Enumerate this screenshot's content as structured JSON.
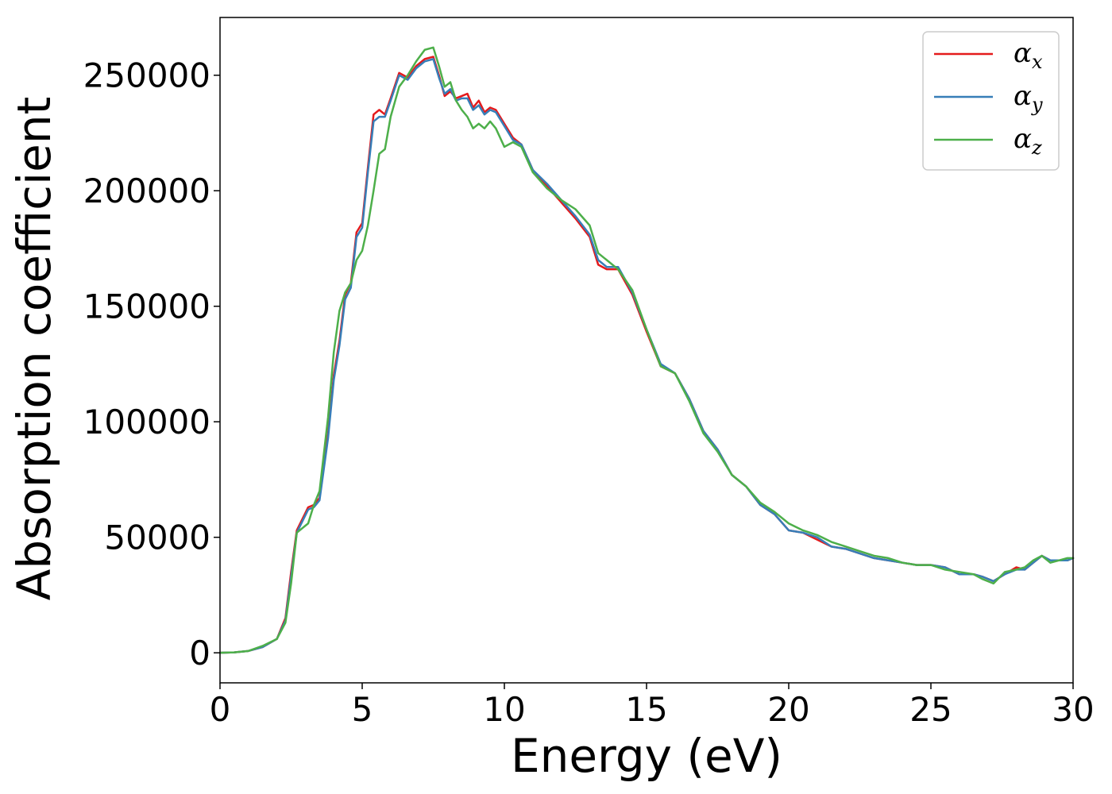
{
  "chart_data": {
    "type": "line",
    "xlabel": "Energy (eV)",
    "ylabel": "Absorption coefficient",
    "xlim": [
      0,
      30
    ],
    "ylim": [
      -13000,
      275000
    ],
    "xticks": [
      0,
      5,
      10,
      15,
      20,
      25,
      30
    ],
    "xtick_labels": [
      "0",
      "5",
      "10",
      "15",
      "20",
      "25",
      "30"
    ],
    "yticks": [
      0,
      50000,
      100000,
      150000,
      200000,
      250000
    ],
    "ytick_labels": [
      "0",
      "50000",
      "100000",
      "150000",
      "200000",
      "250000"
    ],
    "grid": false,
    "legend_position": "top-right",
    "series": [
      {
        "name": "α",
        "subscript": "x",
        "color": "#e41a1c",
        "x": [
          0,
          0.5,
          1.0,
          1.5,
          2.0,
          2.3,
          2.5,
          2.7,
          2.9,
          3.1,
          3.3,
          3.5,
          3.8,
          4.0,
          4.2,
          4.4,
          4.6,
          4.8,
          5.0,
          5.2,
          5.4,
          5.6,
          5.8,
          6.0,
          6.3,
          6.6,
          6.9,
          7.2,
          7.5,
          7.7,
          7.9,
          8.1,
          8.3,
          8.5,
          8.7,
          8.9,
          9.1,
          9.3,
          9.5,
          9.7,
          10.0,
          10.3,
          10.6,
          11.0,
          11.5,
          12.0,
          12.5,
          13.0,
          13.3,
          13.6,
          14.0,
          14.5,
          15.0,
          15.5,
          16.0,
          16.5,
          17.0,
          17.5,
          18.0,
          18.5,
          19.0,
          19.5,
          20.0,
          20.5,
          21.0,
          21.5,
          22.0,
          22.5,
          23.0,
          23.5,
          24.0,
          24.5,
          25.0,
          25.5,
          26.0,
          26.5,
          26.8,
          27.2,
          27.6,
          28.0,
          28.3,
          28.6,
          28.9,
          29.2,
          29.5,
          29.8,
          30.0
        ],
        "y": [
          0,
          200,
          800,
          2500,
          6000,
          15000,
          35000,
          53000,
          58000,
          63000,
          64000,
          67000,
          95000,
          120000,
          135000,
          155000,
          160000,
          182000,
          186000,
          210000,
          233000,
          235000,
          233000,
          240000,
          251000,
          249000,
          254000,
          257000,
          258000,
          250000,
          241000,
          243000,
          240000,
          241000,
          242000,
          236000,
          239000,
          234000,
          236000,
          235000,
          229000,
          223000,
          220000,
          209000,
          202000,
          195000,
          188000,
          180000,
          168000,
          166000,
          166000,
          155000,
          139000,
          124000,
          121000,
          110000,
          96000,
          88000,
          77000,
          72000,
          64000,
          60000,
          53000,
          52000,
          49000,
          46000,
          45000,
          43000,
          41000,
          40000,
          39000,
          38000,
          38000,
          37000,
          34000,
          34000,
          33000,
          31000,
          34000,
          37000,
          36000,
          39000,
          42000,
          40000,
          40000,
          40000,
          41000
        ]
      },
      {
        "name": "α",
        "subscript": "y",
        "color": "#377eb8",
        "x": [
          0,
          0.5,
          1.0,
          1.5,
          2.0,
          2.3,
          2.5,
          2.7,
          2.9,
          3.1,
          3.3,
          3.5,
          3.8,
          4.0,
          4.2,
          4.4,
          4.6,
          4.8,
          5.0,
          5.2,
          5.4,
          5.6,
          5.8,
          6.0,
          6.3,
          6.6,
          6.9,
          7.2,
          7.5,
          7.7,
          7.9,
          8.1,
          8.3,
          8.5,
          8.7,
          8.9,
          9.1,
          9.3,
          9.5,
          9.7,
          10.0,
          10.3,
          10.6,
          11.0,
          11.5,
          12.0,
          12.5,
          13.0,
          13.3,
          13.6,
          14.0,
          14.5,
          15.0,
          15.5,
          16.0,
          16.5,
          17.0,
          17.5,
          18.0,
          18.5,
          19.0,
          19.5,
          20.0,
          20.5,
          21.0,
          21.5,
          22.0,
          22.5,
          23.0,
          23.5,
          24.0,
          24.5,
          25.0,
          25.5,
          26.0,
          26.5,
          26.8,
          27.2,
          27.6,
          28.0,
          28.3,
          28.6,
          28.9,
          29.2,
          29.5,
          29.8,
          30.0
        ],
        "y": [
          0,
          200,
          800,
          2500,
          6000,
          14000,
          33000,
          52000,
          57000,
          62000,
          63000,
          66000,
          93000,
          118000,
          133000,
          153000,
          158000,
          180000,
          184000,
          208000,
          230000,
          232000,
          232000,
          239000,
          250000,
          248000,
          253000,
          256000,
          257000,
          249000,
          242000,
          244000,
          239000,
          240000,
          240000,
          235000,
          237000,
          233000,
          235000,
          234000,
          228000,
          222000,
          220000,
          209000,
          203000,
          196000,
          189000,
          181000,
          170000,
          167000,
          167000,
          156000,
          140000,
          125000,
          121000,
          110000,
          96000,
          88000,
          77000,
          72000,
          64000,
          60000,
          53000,
          52000,
          50000,
          46000,
          45000,
          43000,
          41000,
          40000,
          39000,
          38000,
          38000,
          37000,
          34000,
          34000,
          33000,
          31000,
          34000,
          36000,
          36000,
          39000,
          42000,
          40000,
          40000,
          40000,
          41000
        ]
      },
      {
        "name": "α",
        "subscript": "z",
        "color": "#4daf4a",
        "x": [
          0,
          0.5,
          1.0,
          1.5,
          2.0,
          2.3,
          2.5,
          2.7,
          2.9,
          3.1,
          3.3,
          3.5,
          3.8,
          4.0,
          4.2,
          4.4,
          4.6,
          4.8,
          5.0,
          5.2,
          5.4,
          5.6,
          5.8,
          6.0,
          6.3,
          6.6,
          6.9,
          7.2,
          7.5,
          7.7,
          7.9,
          8.1,
          8.3,
          8.5,
          8.7,
          8.9,
          9.1,
          9.3,
          9.5,
          9.7,
          10.0,
          10.3,
          10.6,
          11.0,
          11.5,
          12.0,
          12.5,
          13.0,
          13.3,
          13.6,
          14.0,
          14.5,
          15.0,
          15.5,
          16.0,
          16.5,
          17.0,
          17.5,
          18.0,
          18.5,
          19.0,
          19.5,
          20.0,
          20.5,
          21.0,
          21.5,
          22.0,
          22.5,
          23.0,
          23.5,
          24.0,
          24.5,
          25.0,
          25.5,
          26.0,
          26.5,
          26.8,
          27.2,
          27.6,
          28.0,
          28.3,
          28.6,
          28.9,
          29.2,
          29.5,
          29.8,
          30.0
        ],
        "y": [
          0,
          200,
          800,
          3000,
          6000,
          13000,
          30000,
          52000,
          54000,
          56000,
          64000,
          70000,
          102000,
          130000,
          148000,
          156000,
          160000,
          170000,
          174000,
          185000,
          200000,
          216000,
          218000,
          232000,
          245000,
          250000,
          256000,
          261000,
          262000,
          254000,
          245000,
          247000,
          239000,
          235000,
          232000,
          227000,
          229000,
          227000,
          230000,
          227000,
          219000,
          221000,
          219000,
          208000,
          201000,
          196000,
          192000,
          185000,
          173000,
          170000,
          166000,
          157000,
          140000,
          124000,
          121000,
          109000,
          95000,
          87000,
          77000,
          72000,
          65000,
          61000,
          56000,
          53000,
          51000,
          48000,
          46000,
          44000,
          42000,
          41000,
          39000,
          38000,
          38000,
          36000,
          35000,
          34000,
          32000,
          30000,
          35000,
          36000,
          37000,
          40000,
          42000,
          39000,
          40000,
          41000,
          41000
        ]
      }
    ]
  }
}
